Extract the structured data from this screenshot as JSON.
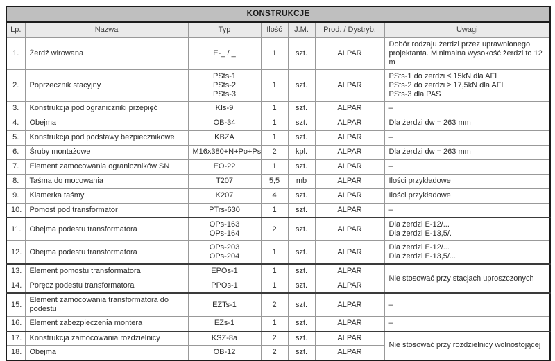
{
  "table": {
    "title": "KONSTRUKCJE",
    "columns": [
      "Lp.",
      "Nazwa",
      "Typ",
      "Ilość",
      "J.M.",
      "Prod. / Dystryb.",
      "Uwagi"
    ],
    "rows": [
      {
        "lp": "1.",
        "nazwa": "Żerdź wirowana",
        "typ": [
          "E-_ / _"
        ],
        "ilosc": "1",
        "jm": "szt.",
        "prod": "ALPAR",
        "uwagi": [
          "Dobór rodzaju żerdzi przez uprawnionego projektanta. Minimalna wysokość żerdzi to 12 m"
        ]
      },
      {
        "lp": "2.",
        "nazwa": "Poprzecznik stacyjny",
        "typ": [
          "PSts-1",
          "PSts-2",
          "PSts-3"
        ],
        "ilosc": "1",
        "jm": "szt.",
        "prod": "ALPAR",
        "uwagi": [
          "PSts-1 do żerdzi ≤ 15kN dla AFL",
          "PSts-2 do żerdzi ≥ 17,5kN dla AFL",
          "PSts-3 dla PAS"
        ]
      },
      {
        "lp": "3.",
        "nazwa": "Konstrukcja pod ograniczniki przepięć",
        "typ": [
          "KIs-9"
        ],
        "ilosc": "1",
        "jm": "szt.",
        "prod": "ALPAR",
        "uwagi": [
          "–"
        ]
      },
      {
        "lp": "4.",
        "nazwa": "Obejma",
        "typ": [
          "OB-34"
        ],
        "ilosc": "1",
        "jm": "szt.",
        "prod": "ALPAR",
        "uwagi": [
          "Dla żerdzi dw = 263 mm"
        ]
      },
      {
        "lp": "5.",
        "nazwa": "Konstrukcja pod podstawy bezpiecznikowe",
        "typ": [
          "KBZA"
        ],
        "ilosc": "1",
        "jm": "szt.",
        "prod": "ALPAR",
        "uwagi": [
          "–"
        ]
      },
      {
        "lp": "6.",
        "nazwa": "Śruby montażowe",
        "typ": [
          "M16x380+N+Po+Ps"
        ],
        "ilosc": "2",
        "jm": "kpl.",
        "prod": "ALPAR",
        "uwagi": [
          "Dla żerdzi dw = 263 mm"
        ]
      },
      {
        "lp": "7.",
        "nazwa": "Element zamocowania ograniczników SN",
        "typ": [
          "EO-22"
        ],
        "ilosc": "1",
        "jm": "szt.",
        "prod": "ALPAR",
        "uwagi": [
          "–"
        ]
      },
      {
        "lp": "8.",
        "nazwa": "Taśma do mocowania",
        "typ": [
          "T207"
        ],
        "ilosc": "5,5",
        "jm": "mb",
        "prod": "ALPAR",
        "uwagi": [
          "Ilości przykładowe"
        ]
      },
      {
        "lp": "9.",
        "nazwa": "Klamerka taśmy",
        "typ": [
          "K207"
        ],
        "ilosc": "4",
        "jm": "szt.",
        "prod": "ALPAR",
        "uwagi": [
          "Ilości przykładowe"
        ]
      },
      {
        "lp": "10.",
        "nazwa": "Pomost pod transformator",
        "typ": [
          "PTrs-630"
        ],
        "ilosc": "1",
        "jm": "szt.",
        "prod": "ALPAR",
        "uwagi": [
          "–"
        ]
      },
      {
        "lp": "11.",
        "nazwa": "Obejma podestu transformatora",
        "typ": [
          "OPs-163",
          "OPs-164"
        ],
        "ilosc": "2",
        "jm": "szt.",
        "prod": "ALPAR",
        "uwagi": [
          "Dla żerdzi E-12/...",
          "Dla żerdzi E-13,5/."
        ]
      },
      {
        "lp": "12.",
        "nazwa": "Obejma podestu transformatora",
        "typ": [
          "OPs-203",
          "OPs-204"
        ],
        "ilosc": "1",
        "jm": "szt.",
        "prod": "ALPAR",
        "uwagi": [
          "Dla żerdzi E-12/...",
          "Dla żerdzi E-13,5/..."
        ]
      },
      {
        "lp": "13.",
        "nazwa": "Element pomostu transformatora",
        "typ": [
          "EPOs-1"
        ],
        "ilosc": "1",
        "jm": "szt.",
        "prod": "ALPAR",
        "uwagi": [
          "Nie stosować przy stacjach uproszczonych"
        ],
        "uwagi_rowspan": 2
      },
      {
        "lp": "14.",
        "nazwa": "Poręcz podestu transformatora",
        "typ": [
          "PPOs-1"
        ],
        "ilosc": "1",
        "jm": "szt.",
        "prod": "ALPAR",
        "uwagi_in_prev": true
      },
      {
        "lp": "15.",
        "nazwa": "Element zamocowania transformatora do podestu",
        "typ": [
          "EZTs-1"
        ],
        "ilosc": "2",
        "jm": "szt.",
        "prod": "ALPAR",
        "uwagi": [
          "–"
        ]
      },
      {
        "lp": "16.",
        "nazwa": "Element zabezpieczenia montera",
        "typ": [
          "EZs-1"
        ],
        "ilosc": "1",
        "jm": "szt.",
        "prod": "ALPAR",
        "uwagi": [
          "–"
        ]
      },
      {
        "lp": "17.",
        "nazwa": "Konstrukcja zamocowania rozdzielnicy",
        "typ": [
          "KSZ-8a"
        ],
        "ilosc": "2",
        "jm": "szt.",
        "prod": "ALPAR",
        "uwagi": [
          "Nie stosować przy rozdzielnicy wolnostojącej"
        ],
        "uwagi_rowspan": 2
      },
      {
        "lp": "18.",
        "nazwa": "Obejma",
        "typ": [
          "OB-12"
        ],
        "ilosc": "2",
        "jm": "szt.",
        "prod": "ALPAR",
        "uwagi_in_prev": true
      }
    ],
    "colors": {
      "title_bg": "#bfbfbf",
      "header_bg": "#eaeaea",
      "border_outer": "#1c1c1c",
      "border_inner": "#999999",
      "text": "#2d2d2d"
    }
  }
}
